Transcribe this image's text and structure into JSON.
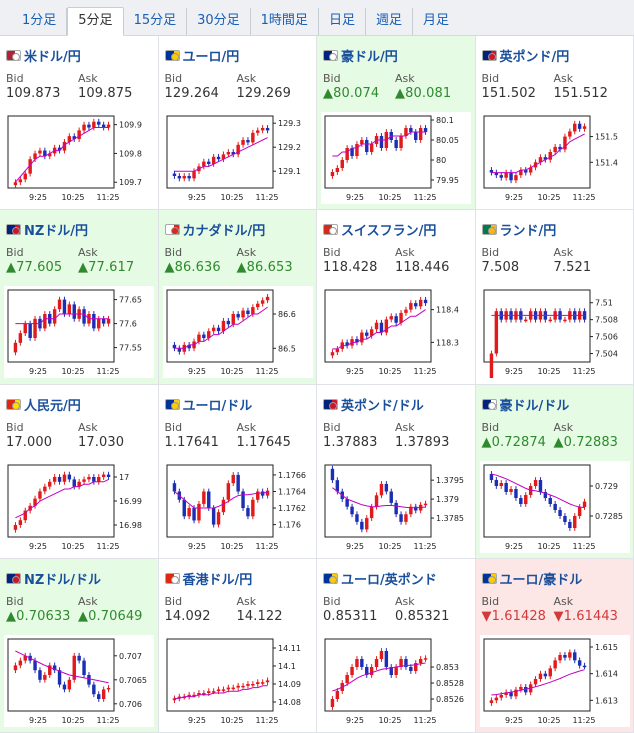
{
  "tabs": [
    {
      "label": "1分足",
      "active": false
    },
    {
      "label": "5分足",
      "active": true
    },
    {
      "label": "15分足",
      "active": false
    },
    {
      "label": "30分足",
      "active": false
    },
    {
      "label": "1時間足",
      "active": false
    },
    {
      "label": "日足",
      "active": false
    },
    {
      "label": "週足",
      "active": false
    },
    {
      "label": "月足",
      "active": false
    }
  ],
  "bid_label": "Bid",
  "ask_label": "Ask",
  "time_labels": [
    "9:25",
    "10:25",
    "11:25"
  ],
  "colors": {
    "up_candle": "#e11b1b",
    "down_candle": "#1c2fb4",
    "ma": "#c400c4",
    "up_bg": "#e6fbe3",
    "down_bg": "#fde6e6",
    "up_text": "#2f8a2f",
    "down_text": "#d23a3a"
  },
  "pairs": [
    {
      "name": "米ドル/円",
      "flag": "us-flag",
      "bid": "109.873",
      "ask": "109.875",
      "trend": "none",
      "y_ticks": [
        "109.9",
        "109.8",
        "109.7"
      ],
      "y_values": [
        109.9,
        109.8,
        109.7
      ],
      "ylim": [
        109.68,
        109.93
      ],
      "shape": [
        109.7,
        109.71,
        109.73,
        109.78,
        109.8,
        109.81,
        109.79,
        109.8,
        109.82,
        109.81,
        109.84,
        109.86,
        109.85,
        109.88,
        109.9,
        109.89,
        109.91,
        109.9,
        109.89,
        109.9
      ],
      "ma_shape": [
        109.7,
        109.72,
        109.74,
        109.76,
        109.78,
        109.79,
        109.79,
        109.8,
        109.81,
        109.81,
        109.83,
        109.84,
        109.85,
        109.86,
        109.87,
        109.88,
        109.89,
        109.89,
        109.89,
        109.89
      ]
    },
    {
      "name": "ユーロ/円",
      "flag": "eu-flag",
      "bid": "129.264",
      "ask": "129.269",
      "trend": "none",
      "y_ticks": [
        "129.3",
        "129.2",
        "129.1"
      ],
      "y_values": [
        129.3,
        129.2,
        129.1
      ],
      "ylim": [
        129.03,
        129.33
      ],
      "shape": [
        129.08,
        129.07,
        129.08,
        129.07,
        129.1,
        129.12,
        129.14,
        129.13,
        129.16,
        129.15,
        129.17,
        129.18,
        129.17,
        129.21,
        129.23,
        129.22,
        129.26,
        129.27,
        129.28,
        129.27
      ],
      "ma_shape": [
        129.1,
        129.1,
        129.1,
        129.1,
        129.1,
        129.11,
        129.12,
        129.12,
        129.13,
        129.14,
        129.15,
        129.16,
        129.17,
        129.18,
        129.19,
        129.2,
        129.21,
        129.22,
        129.23,
        129.24
      ]
    },
    {
      "name": "豪ドル/円",
      "flag": "au-flag",
      "bid": "▲80.074",
      "ask": "▲80.081",
      "trend": "up",
      "y_ticks": [
        "80.1",
        "80.05",
        "80",
        "79.95"
      ],
      "y_values": [
        80.1,
        80.05,
        80.0,
        79.95
      ],
      "ylim": [
        79.93,
        80.11
      ],
      "shape": [
        79.97,
        79.98,
        80.0,
        80.03,
        80.01,
        80.04,
        80.05,
        80.02,
        80.04,
        80.06,
        80.03,
        80.07,
        80.05,
        80.03,
        80.06,
        80.08,
        80.07,
        80.05,
        80.08,
        80.07
      ],
      "ma_shape": [
        80.01,
        80.01,
        80.02,
        80.02,
        80.03,
        80.03,
        80.04,
        80.04,
        80.04,
        80.05,
        80.05,
        80.05,
        80.06,
        80.06,
        80.06,
        80.06,
        80.07,
        80.07,
        80.07,
        80.07
      ]
    },
    {
      "name": "英ポンド/円",
      "flag": "gb-flag",
      "bid": "151.502",
      "ask": "151.512",
      "trend": "none",
      "y_ticks": [
        "151.5",
        "151.4"
      ],
      "y_values": [
        151.5,
        151.4
      ],
      "ylim": [
        151.3,
        151.58
      ],
      "shape": [
        151.36,
        151.35,
        151.34,
        151.36,
        151.33,
        151.35,
        151.37,
        151.36,
        151.38,
        151.4,
        151.42,
        151.41,
        151.44,
        151.46,
        151.45,
        151.5,
        151.52,
        151.55,
        151.53,
        151.54
      ],
      "ma_shape": [
        151.36,
        151.36,
        151.36,
        151.36,
        151.36,
        151.36,
        151.37,
        151.37,
        151.38,
        151.39,
        151.4,
        151.41,
        151.42,
        151.43,
        151.45,
        151.46,
        151.48,
        151.49,
        151.5,
        151.51
      ]
    },
    {
      "name": "NZドル/円",
      "flag": "nz-flag",
      "bid": "▲77.605",
      "ask": "▲77.617",
      "trend": "up",
      "y_ticks": [
        "77.65",
        "77.6",
        "77.55"
      ],
      "y_values": [
        77.65,
        77.6,
        77.55
      ],
      "ylim": [
        77.52,
        77.67
      ],
      "shape": [
        77.56,
        77.58,
        77.6,
        77.57,
        77.61,
        77.59,
        77.62,
        77.6,
        77.63,
        77.65,
        77.62,
        77.64,
        77.61,
        77.63,
        77.6,
        77.62,
        77.59,
        77.61,
        77.6,
        77.61
      ],
      "ma_shape": [
        77.6,
        77.6,
        77.6,
        77.6,
        77.6,
        77.6,
        77.61,
        77.61,
        77.61,
        77.62,
        77.62,
        77.62,
        77.62,
        77.62,
        77.62,
        77.61,
        77.61,
        77.61,
        77.61,
        77.61
      ]
    },
    {
      "name": "カナダドル/円",
      "flag": "ca-flag",
      "bid": "▲86.636",
      "ask": "▲86.653",
      "trend": "up",
      "y_ticks": [
        "86.6",
        "86.5"
      ],
      "y_values": [
        86.6,
        86.5
      ],
      "ylim": [
        86.46,
        86.67
      ],
      "shape": [
        86.5,
        86.49,
        86.51,
        86.5,
        86.52,
        86.54,
        86.53,
        86.55,
        86.56,
        86.55,
        86.58,
        86.57,
        86.6,
        86.59,
        86.61,
        86.6,
        86.62,
        86.63,
        86.64,
        86.65
      ],
      "ma_shape": [
        86.5,
        86.5,
        86.5,
        86.51,
        86.51,
        86.52,
        86.52,
        86.53,
        86.54,
        86.54,
        86.55,
        86.56,
        86.57,
        86.57,
        86.58,
        86.59,
        86.6,
        86.6,
        86.61,
        86.62
      ]
    },
    {
      "name": "スイスフラン/円",
      "flag": "ch-flag",
      "bid": "118.428",
      "ask": "118.446",
      "trend": "none",
      "y_ticks": [
        "118.4",
        "118.3"
      ],
      "y_values": [
        118.4,
        118.3
      ],
      "ylim": [
        118.24,
        118.46
      ],
      "shape": [
        118.27,
        118.28,
        118.3,
        118.29,
        118.31,
        118.3,
        118.33,
        118.32,
        118.34,
        118.36,
        118.33,
        118.37,
        118.38,
        118.36,
        118.39,
        118.4,
        118.42,
        118.41,
        118.43,
        118.42
      ],
      "ma_shape": [
        118.28,
        118.28,
        118.29,
        118.29,
        118.3,
        118.3,
        118.31,
        118.31,
        118.32,
        118.33,
        118.33,
        118.34,
        118.35,
        118.35,
        118.36,
        118.37,
        118.38,
        118.38,
        118.39,
        118.4
      ]
    },
    {
      "name": "ランド/円",
      "flag": "za-flag",
      "bid": "7.508",
      "ask": "7.521",
      "trend": "none",
      "y_ticks": [
        "7.51",
        "7.508",
        "7.506",
        "7.504"
      ],
      "y_values": [
        7.51,
        7.508,
        7.506,
        7.504
      ],
      "ylim": [
        7.503,
        7.5115
      ],
      "shape": [
        7.504,
        7.509,
        7.508,
        7.509,
        7.508,
        7.509,
        7.508,
        7.508,
        7.509,
        7.508,
        7.509,
        7.508,
        7.508,
        7.509,
        7.508,
        7.508,
        7.509,
        7.508,
        7.509,
        7.508
      ],
      "ma_shape": [
        7.5085,
        7.5085,
        7.5085,
        7.5085,
        7.5085,
        7.5085,
        7.5085,
        7.5085,
        7.5085,
        7.5085,
        7.5085,
        7.5085,
        7.5085,
        7.5085,
        7.5085,
        7.5085,
        7.5085,
        7.5085,
        7.5085,
        7.5085
      ]
    },
    {
      "name": "人民元/円",
      "flag": "cn-flag",
      "bid": "17.000",
      "ask": "17.030",
      "trend": "none",
      "y_ticks": [
        "17",
        "16.99",
        "16.98"
      ],
      "y_values": [
        17.0,
        16.99,
        16.98
      ],
      "ylim": [
        16.975,
        17.005
      ],
      "shape": [
        16.98,
        16.982,
        16.986,
        16.988,
        16.991,
        16.994,
        16.996,
        16.998,
        17.0,
        16.998,
        17.001,
        16.999,
        16.996,
        16.998,
        16.999,
        17.0,
        16.998,
        17.0,
        17.001,
        17.0
      ],
      "ma_shape": [
        16.983,
        16.984,
        16.985,
        16.987,
        16.988,
        16.99,
        16.991,
        16.992,
        16.993,
        16.994,
        16.995,
        16.995,
        16.996,
        16.996,
        16.997,
        16.997,
        16.998,
        16.998,
        16.998,
        16.999
      ]
    },
    {
      "name": "ユーロ/ドル",
      "flag": "eu-flag",
      "bid": "1.17641",
      "ask": "1.17645",
      "trend": "none",
      "y_ticks": [
        "1.1766",
        "1.1764",
        "1.1762",
        "1.176"
      ],
      "y_values": [
        1.1766,
        1.1764,
        1.1762,
        1.176
      ],
      "ylim": [
        1.17585,
        1.17672
      ],
      "shape": [
        1.1764,
        1.1763,
        1.1761,
        1.1762,
        1.17605,
        1.17625,
        1.1764,
        1.1762,
        1.176,
        1.17615,
        1.1763,
        1.1765,
        1.1766,
        1.1764,
        1.1762,
        1.1761,
        1.1763,
        1.1764,
        1.17635,
        1.17641
      ],
      "ma_shape": [
        1.1764,
        1.17635,
        1.1763,
        1.17625,
        1.1762,
        1.1762,
        1.1762,
        1.1762,
        1.1762,
        1.17622,
        1.17625,
        1.17628,
        1.17632,
        1.17635,
        1.17636,
        1.17636,
        1.17637,
        1.17638,
        1.17638,
        1.17639
      ]
    },
    {
      "name": "英ポンド/ドル",
      "flag": "gb-flag",
      "bid": "1.37883",
      "ask": "1.37893",
      "trend": "none",
      "y_ticks": [
        "1.3795",
        "1.379",
        "1.3785"
      ],
      "y_values": [
        1.3795,
        1.379,
        1.3785
      ],
      "ylim": [
        1.378,
        1.3799
      ],
      "shape": [
        1.3795,
        1.3792,
        1.379,
        1.3788,
        1.3786,
        1.3784,
        1.3782,
        1.3785,
        1.3788,
        1.3791,
        1.3794,
        1.3792,
        1.3789,
        1.3786,
        1.3784,
        1.3786,
        1.3788,
        1.3787,
        1.37885,
        1.37888
      ],
      "ma_shape": [
        1.3793,
        1.3792,
        1.3791,
        1.379,
        1.37895,
        1.3789,
        1.37885,
        1.37882,
        1.3788,
        1.3788,
        1.37882,
        1.37883,
        1.37883,
        1.37882,
        1.3788,
        1.37878,
        1.37877,
        1.37877,
        1.37878,
        1.37879
      ]
    },
    {
      "name": "豪ドル/ドル",
      "flag": "au-flag",
      "bid": "▲0.72874",
      "ask": "▲0.72883",
      "trend": "up",
      "y_ticks": [
        "0.729",
        "0.7285"
      ],
      "y_values": [
        0.729,
        0.7285
      ],
      "ylim": [
        0.72815,
        0.72935
      ],
      "shape": [
        0.7291,
        0.729,
        0.72905,
        0.7289,
        0.72895,
        0.7288,
        0.7287,
        0.72885,
        0.729,
        0.7291,
        0.7289,
        0.7288,
        0.7287,
        0.7286,
        0.7285,
        0.7284,
        0.7283,
        0.7285,
        0.72865,
        0.72874
      ],
      "ma_shape": [
        0.7292,
        0.72918,
        0.72915,
        0.72912,
        0.72908,
        0.72904,
        0.729,
        0.72896,
        0.72893,
        0.72892,
        0.7289,
        0.72888,
        0.72885,
        0.72882,
        0.72878,
        0.72874,
        0.7287,
        0.72867,
        0.72865,
        0.72864
      ]
    },
    {
      "name": "NZドル/ドル",
      "flag": "nz-flag",
      "bid": "▲0.70633",
      "ask": "▲0.70649",
      "trend": "up",
      "y_ticks": [
        "0.707",
        "0.7065",
        "0.706"
      ],
      "y_values": [
        0.707,
        0.7065,
        0.706
      ],
      "ylim": [
        0.70585,
        0.70735
      ],
      "shape": [
        0.7068,
        0.7069,
        0.707,
        0.7069,
        0.7067,
        0.7065,
        0.7066,
        0.7068,
        0.7067,
        0.7064,
        0.7063,
        0.7065,
        0.707,
        0.7069,
        0.7066,
        0.7064,
        0.7062,
        0.7061,
        0.7063,
        0.70633
      ],
      "ma_shape": [
        0.7071,
        0.70705,
        0.707,
        0.70695,
        0.7069,
        0.70685,
        0.7068,
        0.70676,
        0.70672,
        0.70668,
        0.70664,
        0.7066,
        0.70658,
        0.70656,
        0.70654,
        0.70652,
        0.7065,
        0.70648,
        0.70646,
        0.70644
      ]
    },
    {
      "name": "香港ドル/円",
      "flag": "hk-flag",
      "bid": "14.092",
      "ask": "14.122",
      "trend": "none",
      "y_ticks": [
        "14.11",
        "14.1",
        "14.09",
        "14.08"
      ],
      "y_values": [
        14.11,
        14.1,
        14.09,
        14.08
      ],
      "ylim": [
        14.075,
        14.115
      ],
      "shape": [
        14.082,
        14.083,
        14.083,
        14.084,
        14.084,
        14.085,
        14.085,
        14.086,
        14.086,
        14.087,
        14.087,
        14.088,
        14.088,
        14.089,
        14.089,
        14.09,
        14.09,
        14.091,
        14.091,
        14.092
      ],
      "ma_shape": [
        14.082,
        14.082,
        14.083,
        14.083,
        14.083,
        14.084,
        14.084,
        14.084,
        14.085,
        14.085,
        14.085,
        14.086,
        14.086,
        14.086,
        14.087,
        14.087,
        14.088,
        14.088,
        14.089,
        14.089
      ]
    },
    {
      "name": "ユーロ/英ポンド",
      "flag": "eu-flag",
      "bid": "0.85311",
      "ask": "0.85321",
      "trend": "none",
      "y_ticks": [
        "0.853",
        "0.8528",
        "0.8526"
      ],
      "y_values": [
        0.853,
        0.8528,
        0.8526
      ],
      "ylim": [
        0.85245,
        0.85335
      ],
      "shape": [
        0.8526,
        0.8527,
        0.8528,
        0.8529,
        0.853,
        0.8531,
        0.853,
        0.8529,
        0.853,
        0.8531,
        0.8532,
        0.853,
        0.8529,
        0.853,
        0.8531,
        0.853,
        0.85295,
        0.85305,
        0.8531,
        0.85311
      ],
      "ma_shape": [
        0.8527,
        0.85272,
        0.85275,
        0.85278,
        0.85282,
        0.85286,
        0.85289,
        0.85291,
        0.85293,
        0.85295,
        0.85297,
        0.85298,
        0.85299,
        0.853,
        0.85301,
        0.85302,
        0.85302,
        0.85303,
        0.85304,
        0.85305
      ]
    },
    {
      "name": "ユーロ/豪ドル",
      "flag": "eu-flag",
      "bid": "▼1.61428",
      "ask": "▼1.61443",
      "trend": "down",
      "y_ticks": [
        "1.615",
        "1.614",
        "1.613"
      ],
      "y_values": [
        1.615,
        1.614,
        1.613
      ],
      "ylim": [
        1.6126,
        1.6153
      ],
      "shape": [
        1.613,
        1.6131,
        1.6132,
        1.6133,
        1.61315,
        1.6134,
        1.6135,
        1.6133,
        1.6136,
        1.6138,
        1.614,
        1.6139,
        1.6142,
        1.6145,
        1.6147,
        1.6146,
        1.6148,
        1.6145,
        1.6143,
        1.61428
      ],
      "ma_shape": [
        1.6132,
        1.61322,
        1.61325,
        1.61328,
        1.61331,
        1.61334,
        1.61338,
        1.61342,
        1.61346,
        1.61351,
        1.61356,
        1.61362,
        1.61368,
        1.61375,
        1.61382,
        1.6139,
        1.61398,
        1.61404,
        1.6141,
        1.61415
      ]
    }
  ]
}
